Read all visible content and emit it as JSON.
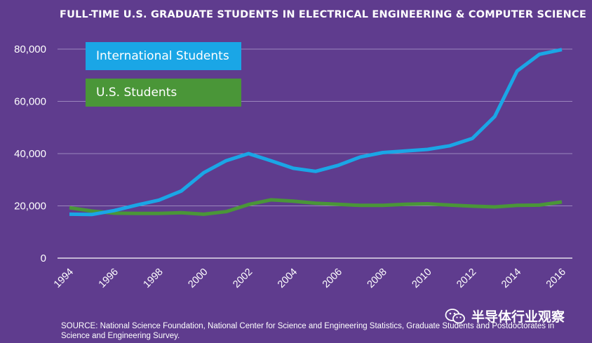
{
  "chart_data": {
    "type": "line",
    "title": "FULL-TIME U.S. GRADUATE STUDENTS IN ELECTRICAL ENGINEERING & COMPUTER SCIENCE",
    "xlabel": "",
    "ylabel": "",
    "x": [
      1994,
      1995,
      1996,
      1997,
      1998,
      1999,
      2000,
      2001,
      2002,
      2003,
      2004,
      2005,
      2006,
      2007,
      2008,
      2009,
      2010,
      2011,
      2012,
      2013,
      2014,
      2015,
      2016
    ],
    "x_tick_labels": [
      "1994",
      "1996",
      "1998",
      "2000",
      "2002",
      "2004",
      "2006",
      "2008",
      "2010",
      "2012",
      "2014",
      "2016"
    ],
    "y_ticks": [
      0,
      20000,
      40000,
      60000,
      80000
    ],
    "y_tick_labels": [
      "0",
      "20,000",
      "40,000",
      "60,000",
      "80,000"
    ],
    "ylim": [
      0,
      80000
    ],
    "xlim": [
      1994,
      2016
    ],
    "grid": true,
    "series": [
      {
        "name": "International Students",
        "color": "#1aa6e6",
        "values": [
          16800,
          16700,
          18200,
          20300,
          22200,
          25700,
          32700,
          37300,
          40000,
          37300,
          34400,
          33200,
          35500,
          38700,
          40400,
          41000,
          41600,
          43000,
          45800,
          54200,
          71600,
          78000,
          79800
        ]
      },
      {
        "name": "U.S. Students",
        "color": "#4a9638",
        "values": [
          19300,
          18000,
          17200,
          17100,
          17100,
          17400,
          16800,
          17800,
          20500,
          22300,
          21800,
          21000,
          20600,
          20200,
          20200,
          20600,
          20800,
          20300,
          19900,
          19600,
          20200,
          20300,
          21500
        ]
      }
    ],
    "legend_placement": "top-left",
    "source": "SOURCE: National Science Foundation, National Center for Science and Engineering Statistics, Graduate Students and Postdoctorates in Science and Engineering Survey."
  },
  "watermark": {
    "text": "半导体行业观察",
    "icon": "wechat-icon"
  }
}
